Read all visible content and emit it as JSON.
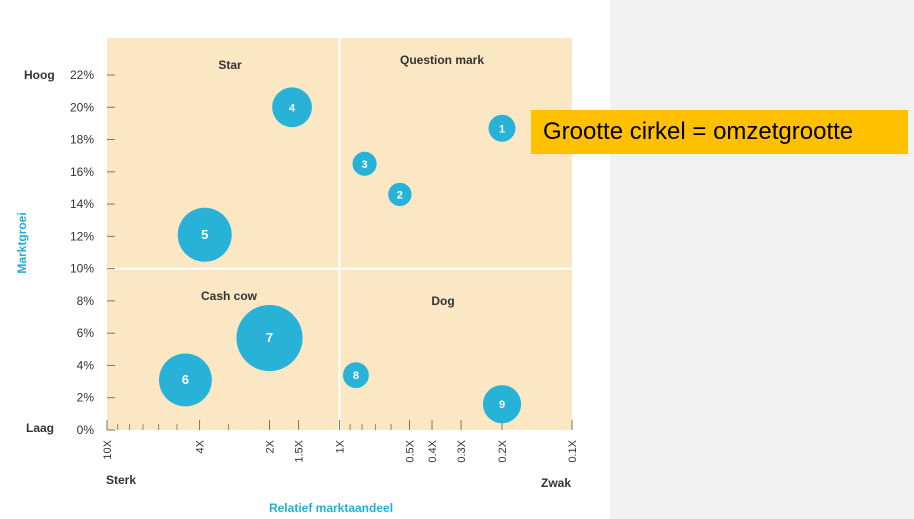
{
  "chart_data": {
    "type": "scatter",
    "title": "",
    "xlabel": "Relatief marktaandeel",
    "ylabel": "Marktgroei",
    "x_scale": "log",
    "x_reversed": true,
    "x_ticks": [
      10,
      4,
      2,
      1.5,
      1,
      0.5,
      0.4,
      0.3,
      0.2,
      0.1
    ],
    "x_tick_labels": [
      "10X",
      "4X",
      "2X",
      "1.5X",
      "1X",
      "0.5X",
      "0.4X",
      "0.3X",
      "0.2X",
      "0.1X"
    ],
    "xlim": [
      10,
      0.1
    ],
    "y_ticks": [
      0,
      2,
      4,
      6,
      8,
      10,
      12,
      14,
      16,
      18,
      20,
      22
    ],
    "y_tick_labels": [
      "0%",
      "2%",
      "4%",
      "6%",
      "8%",
      "10%",
      "12%",
      "14%",
      "16%",
      "18%",
      "20%",
      "22%"
    ],
    "ylim": [
      0,
      22
    ],
    "y_end_labels": {
      "high": "Hoog",
      "low": "Laag"
    },
    "x_end_labels": {
      "strong": "Sterk",
      "weak": "Zwak"
    },
    "quadrants": [
      "Star",
      "Question mark",
      "Cash cow",
      "Dog"
    ],
    "quadrant_divider": {
      "x": 1,
      "y": 10
    },
    "points": [
      {
        "label": "1",
        "x": 0.2,
        "y": 18.7,
        "size": 0.6
      },
      {
        "label": "2",
        "x": 0.55,
        "y": 14.6,
        "size": 0.45
      },
      {
        "label": "3",
        "x": 0.78,
        "y": 16.5,
        "size": 0.48
      },
      {
        "label": "4",
        "x": 1.6,
        "y": 20.0,
        "size": 1.3
      },
      {
        "label": "5",
        "x": 3.8,
        "y": 12.1,
        "size": 2.4
      },
      {
        "label": "6",
        "x": 4.6,
        "y": 3.1,
        "size": 2.3
      },
      {
        "label": "7",
        "x": 2.0,
        "y": 5.7,
        "size": 3.6
      },
      {
        "label": "8",
        "x": 0.85,
        "y": 3.4,
        "size": 0.55
      },
      {
        "label": "9",
        "x": 0.2,
        "y": 1.6,
        "size": 1.2
      }
    ]
  },
  "colors": {
    "plot_bg": "#fbe7c3",
    "bubble": "#29b2d8",
    "accent_label": "#29aed3",
    "callout_bg": "#ffc000"
  },
  "callout": {
    "text": "Grootte cirkel = omzetgrootte"
  }
}
